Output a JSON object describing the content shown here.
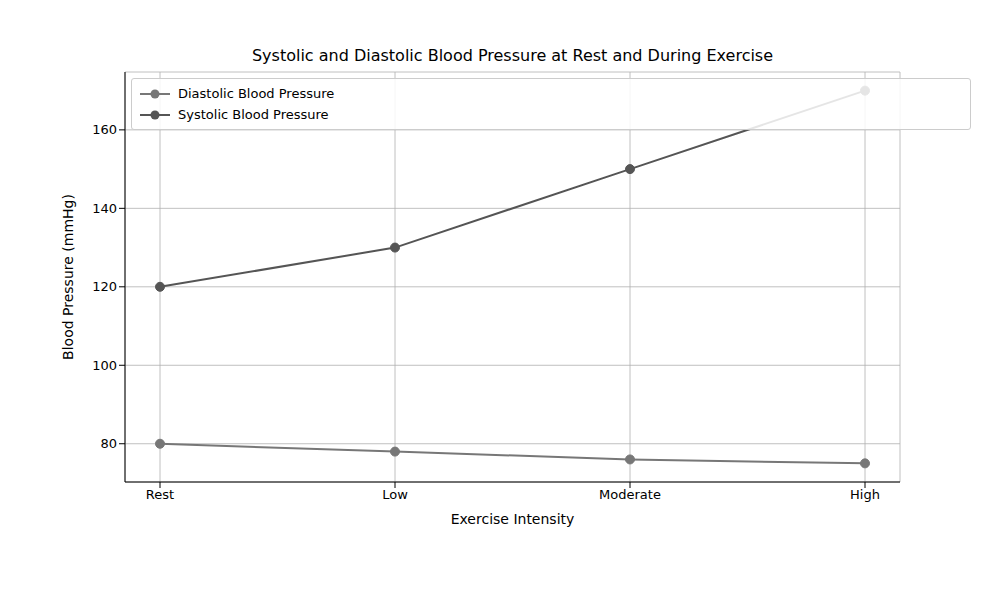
{
  "chart_data": {
    "type": "line",
    "title": "Systolic and Diastolic Blood Pressure at Rest and During Exercise",
    "x_label": "Exercise Intensity",
    "y_label": "Blood Pressure (mmHg)",
    "categories": [
      "Rest",
      "Low",
      "Moderate",
      "High"
    ],
    "series": [
      {
        "name": "Systolic Blood Pressure",
        "color": "#555555",
        "marker": "circle",
        "values": [
          120,
          130,
          150,
          170
        ]
      },
      {
        "name": "Diastolic Blood Pressure",
        "color": "#777777",
        "marker": "circle",
        "values": [
          80,
          78,
          76,
          75
        ]
      }
    ],
    "ylim": [
      70.25,
      174.75
    ],
    "yticks": [
      80,
      100,
      120,
      140,
      160
    ],
    "grid": true,
    "legend": "upper left"
  }
}
